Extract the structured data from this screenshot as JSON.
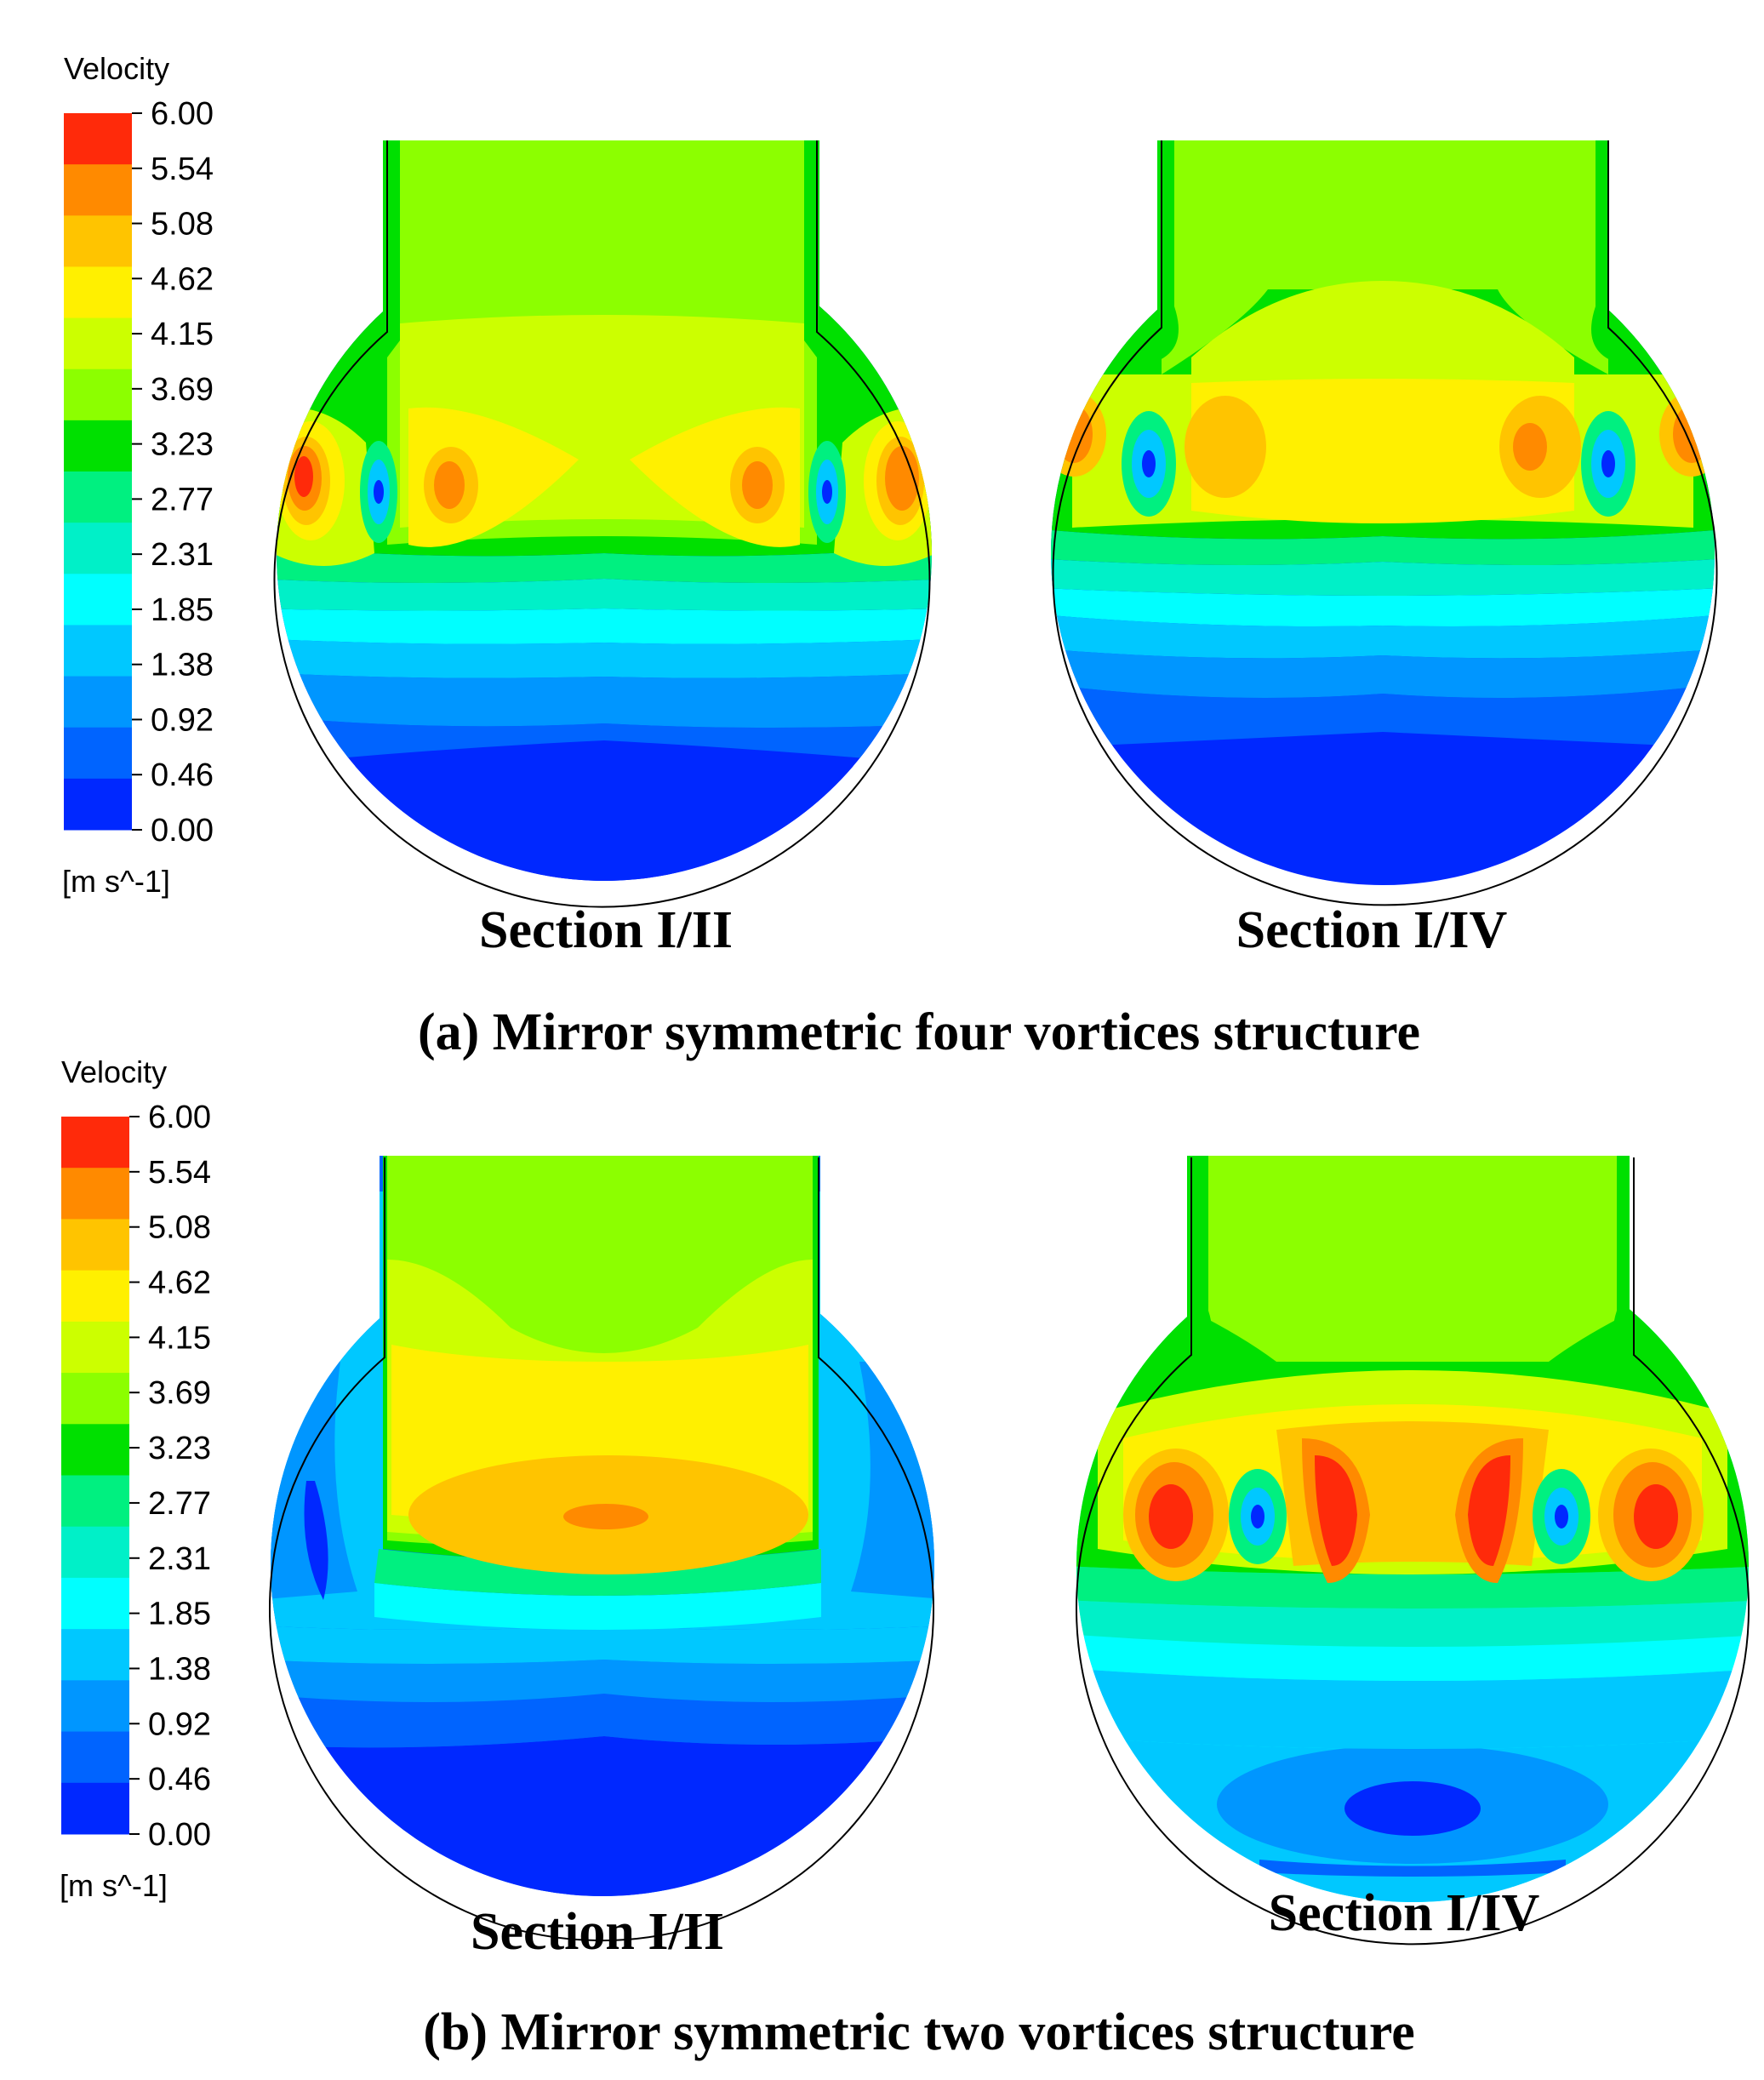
{
  "panels": [
    {
      "id": "a",
      "caption": "(a) Mirror symmetric four vortices structure",
      "legend": {
        "title": "Velocity",
        "unit": "[m s^-1]",
        "ticks": [
          "6.00",
          "5.54",
          "5.08",
          "4.62",
          "4.15",
          "3.69",
          "3.23",
          "2.77",
          "2.31",
          "1.85",
          "1.38",
          "0.92",
          "0.46",
          "0.00"
        ]
      },
      "sections": [
        {
          "label": "Section I/II",
          "pattern": "four-vortex"
        },
        {
          "label": "Section I/IV",
          "pattern": "four-vortex-wide"
        }
      ]
    },
    {
      "id": "b",
      "caption": "(b) Mirror symmetric two vortices  structure",
      "legend": {
        "title": "Velocity",
        "unit": "[m s^-1]",
        "ticks": [
          "6.00",
          "5.54",
          "5.08",
          "4.62",
          "4.15",
          "3.69",
          "3.23",
          "2.77",
          "2.31",
          "1.85",
          "1.38",
          "0.92",
          "0.46",
          "0.00"
        ]
      },
      "sections": [
        {
          "label": "Section I/II",
          "pattern": "central-core"
        },
        {
          "label": "Section I/IV",
          "pattern": "two-vortex"
        }
      ]
    }
  ],
  "colormap": [
    "#ff2a0a",
    "#ff8a00",
    "#ffc400",
    "#fff000",
    "#ccff00",
    "#8cff00",
    "#00e000",
    "#00f080",
    "#00f0c8",
    "#00ffff",
    "#00c8ff",
    "#0096ff",
    "#0064ff",
    "#0028ff"
  ]
}
